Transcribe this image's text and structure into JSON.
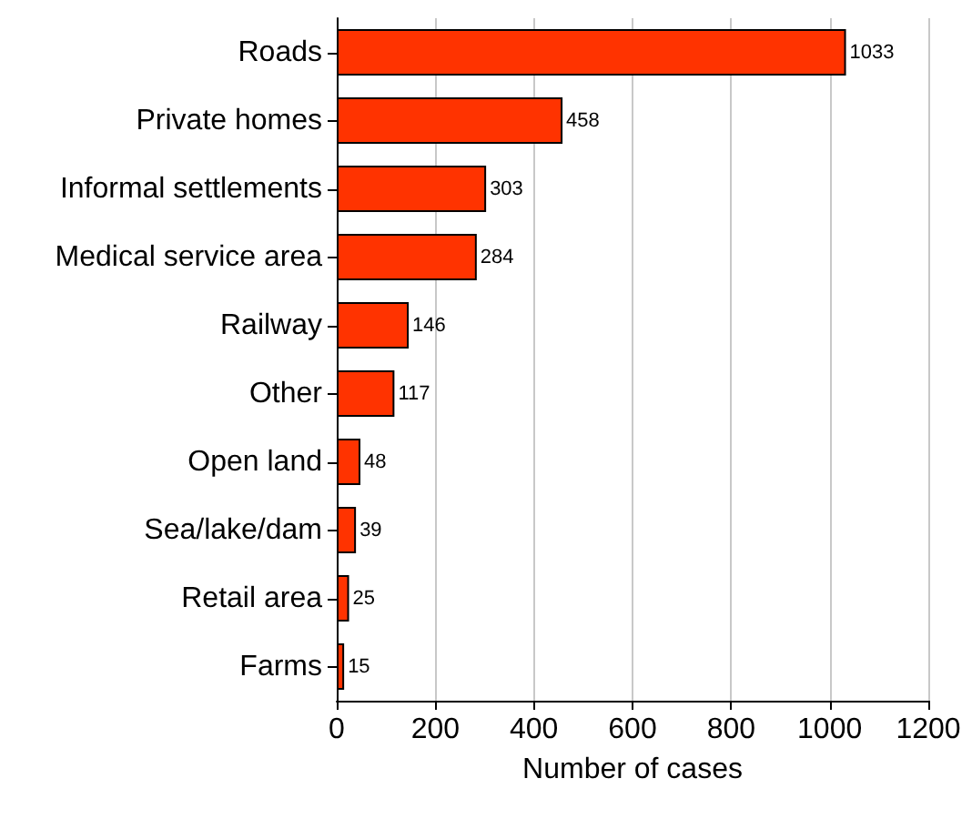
{
  "chart_data": {
    "type": "bar",
    "orientation": "horizontal",
    "xlabel": "Number of cases",
    "categories": [
      "Roads",
      "Private homes",
      "Informal settlements",
      "Medical service area",
      "Railway",
      "Other",
      "Open land",
      "Sea/lake/dam",
      "Retail area",
      "Farms"
    ],
    "values": [
      1033,
      458,
      303,
      284,
      146,
      117,
      48,
      39,
      25,
      15
    ],
    "color": "#ff3300",
    "xlim": [
      0,
      1200
    ],
    "xticks": [
      0,
      200,
      400,
      600,
      800,
      1000,
      1200
    ],
    "grid": "x",
    "data_labels": true
  }
}
